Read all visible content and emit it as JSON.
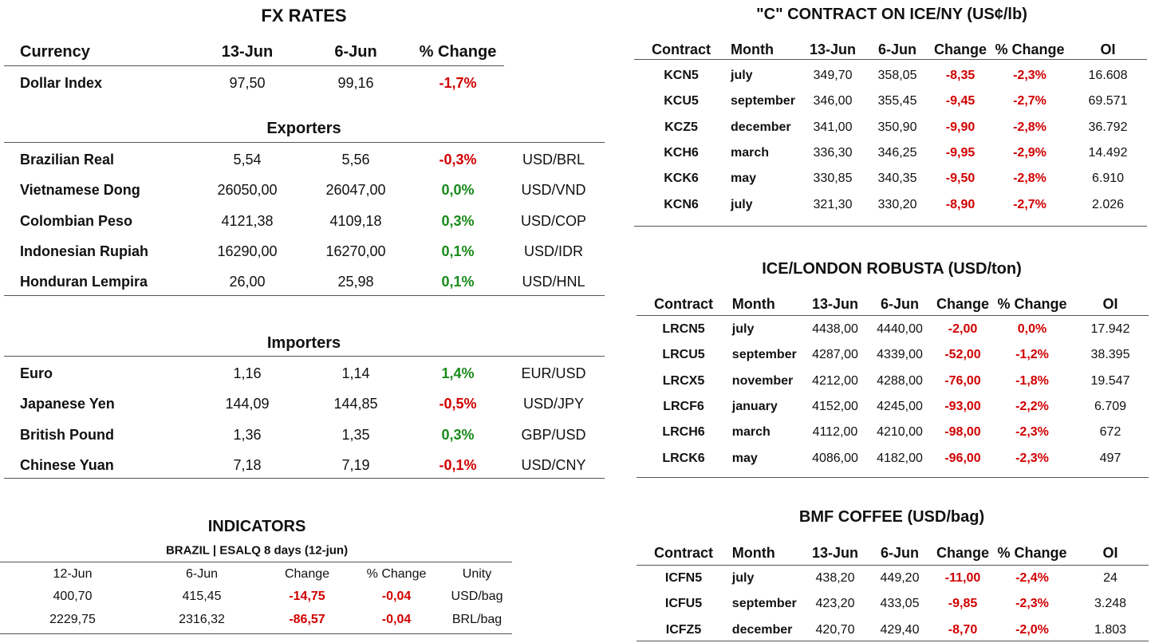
{
  "fx": {
    "title": "FX RATES",
    "header": [
      "Currency",
      "13-Jun",
      "6-Jun",
      "% Change"
    ],
    "rows": [
      [
        "Dollar Index",
        "97,50",
        "99,16",
        "-1,7%"
      ]
    ],
    "exporters": {
      "title": "Exporters",
      "rows": [
        [
          "Brazilian Real",
          "5,54",
          "5,56",
          "-0,3%",
          "USD/BRL"
        ],
        [
          "Vietnamese Dong",
          "26050,00",
          "26047,00",
          "0,0%",
          "USD/VND"
        ],
        [
          "Colombian Peso",
          "4121,38",
          "4109,18",
          "0,3%",
          "USD/COP"
        ],
        [
          "Indonesian Rupiah",
          "16290,00",
          "16270,00",
          "0,1%",
          "USD/IDR"
        ],
        [
          "Honduran Lempira",
          "26,00",
          "25,98",
          "0,1%",
          "USD/HNL"
        ]
      ]
    },
    "importers": {
      "title": "Importers",
      "rows": [
        [
          "Euro",
          "1,16",
          "1,14",
          "1,4%",
          "EUR/USD"
        ],
        [
          "Japanese Yen",
          "144,09",
          "144,85",
          "-0,5%",
          "USD/JPY"
        ],
        [
          "British Pound",
          "1,36",
          "1,35",
          "0,3%",
          "GBP/USD"
        ],
        [
          "Chinese Yuan",
          "7,18",
          "7,19",
          "-0,1%",
          "USD/CNY"
        ]
      ]
    }
  },
  "indicators": {
    "title": "INDICATORS",
    "subtitle": "BRAZIL | ESALQ 8 days (12-jun)",
    "header": [
      "12-Jun",
      "6-Jun",
      "Change",
      "% Change",
      "Unity"
    ],
    "rows": [
      [
        "400,70",
        "415,45",
        "-14,75",
        "-0,04",
        "USD/bag"
      ],
      [
        "2229,75",
        "2316,32",
        "-86,57",
        "-0,04",
        "BRL/bag"
      ]
    ]
  },
  "ice_ny": {
    "title": "\"C\" CONTRACT ON ICE/NY (US¢/lb)",
    "header": [
      "Contract",
      "Month",
      "13-Jun",
      "6-Jun",
      "Change",
      "% Change",
      "OI"
    ],
    "rows": [
      [
        "KCN5",
        "july",
        "349,70",
        "358,05",
        "-8,35",
        "-2,3%",
        "16.608"
      ],
      [
        "KCU5",
        "september",
        "346,00",
        "355,45",
        "-9,45",
        "-2,7%",
        "69.571"
      ],
      [
        "KCZ5",
        "december",
        "341,00",
        "350,90",
        "-9,90",
        "-2,8%",
        "36.792"
      ],
      [
        "KCH6",
        "march",
        "336,30",
        "346,25",
        "-9,95",
        "-2,9%",
        "14.492"
      ],
      [
        "KCK6",
        "may",
        "330,85",
        "340,35",
        "-9,50",
        "-2,8%",
        "6.910"
      ],
      [
        "KCN6",
        "july",
        "321,30",
        "330,20",
        "-8,90",
        "-2,7%",
        "2.026"
      ]
    ]
  },
  "ice_london": {
    "title": "ICE/LONDON ROBUSTA (USD/ton)",
    "header": [
      "Contract",
      "Month",
      "13-Jun",
      "6-Jun",
      "Change",
      "% Change",
      "OI"
    ],
    "rows": [
      [
        "LRCN5",
        "july",
        "4438,00",
        "4440,00",
        "-2,00",
        "0,0%",
        "17.942"
      ],
      [
        "LRCU5",
        "september",
        "4287,00",
        "4339,00",
        "-52,00",
        "-1,2%",
        "38.395"
      ],
      [
        "LRCX5",
        "november",
        "4212,00",
        "4288,00",
        "-76,00",
        "-1,8%",
        "19.547"
      ],
      [
        "LRCF6",
        "january",
        "4152,00",
        "4245,00",
        "-93,00",
        "-2,2%",
        "6.709"
      ],
      [
        "LRCH6",
        "march",
        "4112,00",
        "4210,00",
        "-98,00",
        "-2,3%",
        "672"
      ],
      [
        "LRCK6",
        "may",
        "4086,00",
        "4182,00",
        "-96,00",
        "-2,3%",
        "497"
      ]
    ]
  },
  "bmf": {
    "title": "BMF COFFEE (USD/bag)",
    "header": [
      "Contract",
      "Month",
      "13-Jun",
      "6-Jun",
      "Change",
      "% Change",
      "OI"
    ],
    "rows": [
      [
        "ICFN5",
        "july",
        "438,20",
        "449,20",
        "-11,00",
        "-2,4%",
        "24"
      ],
      [
        "ICFU5",
        "september",
        "423,20",
        "433,05",
        "-9,85",
        "-2,3%",
        "3.248"
      ],
      [
        "ICFZ5",
        "december",
        "420,70",
        "429,40",
        "-8,70",
        "-2,0%",
        "1.803"
      ]
    ]
  }
}
